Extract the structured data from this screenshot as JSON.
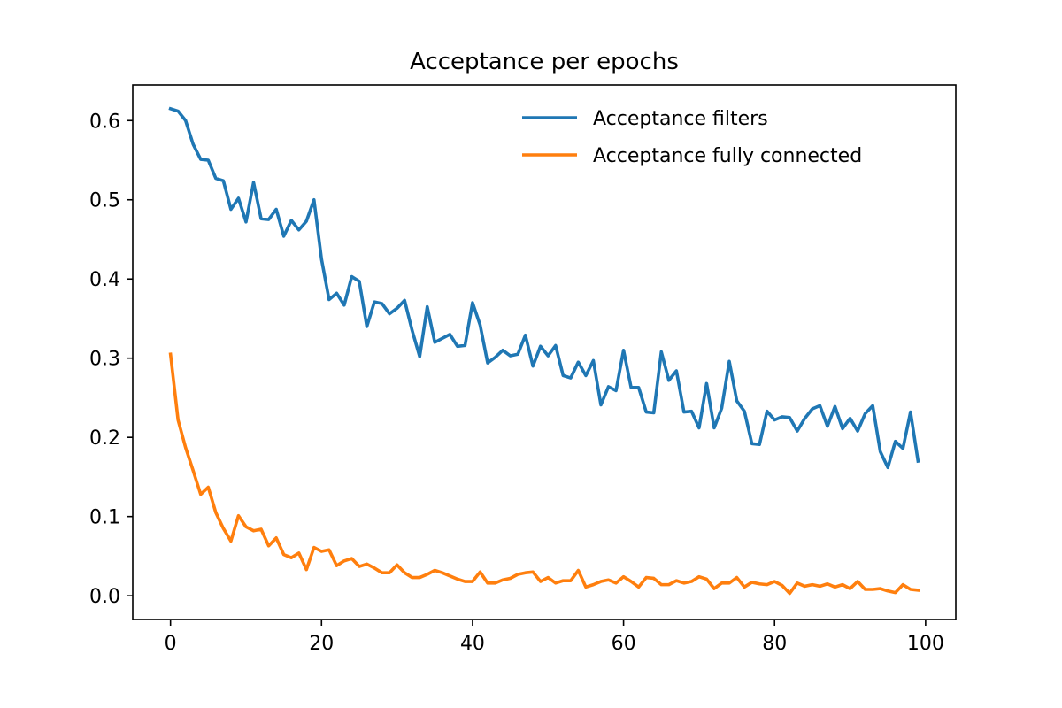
{
  "chart_data": {
    "type": "line",
    "title": "Acceptance per epochs",
    "xlabel": "",
    "ylabel": "",
    "xlim": [
      -5,
      104
    ],
    "ylim": [
      -0.03,
      0.645
    ],
    "x_ticks": [
      0,
      20,
      40,
      60,
      80,
      100
    ],
    "y_ticks": [
      0.0,
      0.1,
      0.2,
      0.3,
      0.4,
      0.5,
      0.6
    ],
    "y_tick_labels": [
      "0.0",
      "0.1",
      "0.2",
      "0.3",
      "0.4",
      "0.5",
      "0.6"
    ],
    "x_tick_labels": [
      "0",
      "20",
      "40",
      "60",
      "80",
      "100"
    ],
    "grid": false,
    "legend_position": "top-right",
    "colors": {
      "series_1": "#1f77b4",
      "series_2": "#ff7f0e"
    },
    "x": [
      0,
      1,
      2,
      3,
      4,
      5,
      6,
      7,
      8,
      9,
      10,
      11,
      12,
      13,
      14,
      15,
      16,
      17,
      18,
      19,
      20,
      21,
      22,
      23,
      24,
      25,
      26,
      27,
      28,
      29,
      30,
      31,
      32,
      33,
      34,
      35,
      36,
      37,
      38,
      39,
      40,
      41,
      42,
      43,
      44,
      45,
      46,
      47,
      48,
      49,
      50,
      51,
      52,
      53,
      54,
      55,
      56,
      57,
      58,
      59,
      60,
      61,
      62,
      63,
      64,
      65,
      66,
      67,
      68,
      69,
      70,
      71,
      72,
      73,
      74,
      75,
      76,
      77,
      78,
      79,
      80,
      81,
      82,
      83,
      84,
      85,
      86,
      87,
      88,
      89,
      90,
      91,
      92,
      93,
      94,
      95,
      96,
      97,
      98,
      99
    ],
    "series": [
      {
        "name": "Acceptance filters",
        "values": [
          0.615,
          0.612,
          0.6,
          0.57,
          0.551,
          0.55,
          0.527,
          0.524,
          0.488,
          0.502,
          0.472,
          0.522,
          0.476,
          0.475,
          0.488,
          0.454,
          0.474,
          0.462,
          0.473,
          0.5,
          0.425,
          0.374,
          0.382,
          0.367,
          0.403,
          0.397,
          0.34,
          0.371,
          0.369,
          0.356,
          0.363,
          0.373,
          0.335,
          0.302,
          0.365,
          0.32,
          0.325,
          0.33,
          0.315,
          0.316,
          0.37,
          0.342,
          0.294,
          0.301,
          0.31,
          0.303,
          0.305,
          0.329,
          0.29,
          0.315,
          0.303,
          0.316,
          0.278,
          0.275,
          0.295,
          0.278,
          0.297,
          0.241,
          0.264,
          0.259,
          0.31,
          0.263,
          0.263,
          0.232,
          0.231,
          0.308,
          0.272,
          0.284,
          0.232,
          0.233,
          0.212,
          0.268,
          0.212,
          0.237,
          0.296,
          0.246,
          0.233,
          0.192,
          0.191,
          0.233,
          0.222,
          0.226,
          0.225,
          0.208,
          0.224,
          0.236,
          0.24,
          0.214,
          0.239,
          0.211,
          0.224,
          0.208,
          0.23,
          0.24,
          0.182,
          0.162,
          0.195,
          0.186,
          0.232,
          0.17
        ]
      },
      {
        "name": "Acceptance fully connected",
        "values": [
          0.305,
          0.222,
          0.187,
          0.158,
          0.128,
          0.137,
          0.105,
          0.085,
          0.069,
          0.101,
          0.087,
          0.082,
          0.084,
          0.063,
          0.073,
          0.052,
          0.048,
          0.054,
          0.033,
          0.061,
          0.056,
          0.058,
          0.038,
          0.044,
          0.047,
          0.037,
          0.04,
          0.035,
          0.029,
          0.029,
          0.039,
          0.029,
          0.023,
          0.023,
          0.027,
          0.032,
          0.029,
          0.025,
          0.021,
          0.018,
          0.018,
          0.03,
          0.016,
          0.016,
          0.02,
          0.022,
          0.027,
          0.029,
          0.03,
          0.018,
          0.023,
          0.016,
          0.019,
          0.019,
          0.032,
          0.011,
          0.014,
          0.018,
          0.02,
          0.016,
          0.024,
          0.018,
          0.011,
          0.023,
          0.022,
          0.014,
          0.014,
          0.019,
          0.016,
          0.018,
          0.024,
          0.021,
          0.009,
          0.016,
          0.016,
          0.023,
          0.011,
          0.017,
          0.015,
          0.014,
          0.018,
          0.013,
          0.003,
          0.016,
          0.012,
          0.014,
          0.012,
          0.015,
          0.011,
          0.014,
          0.009,
          0.018,
          0.008,
          0.008,
          0.009,
          0.006,
          0.004,
          0.014,
          0.008,
          0.007
        ]
      }
    ]
  }
}
